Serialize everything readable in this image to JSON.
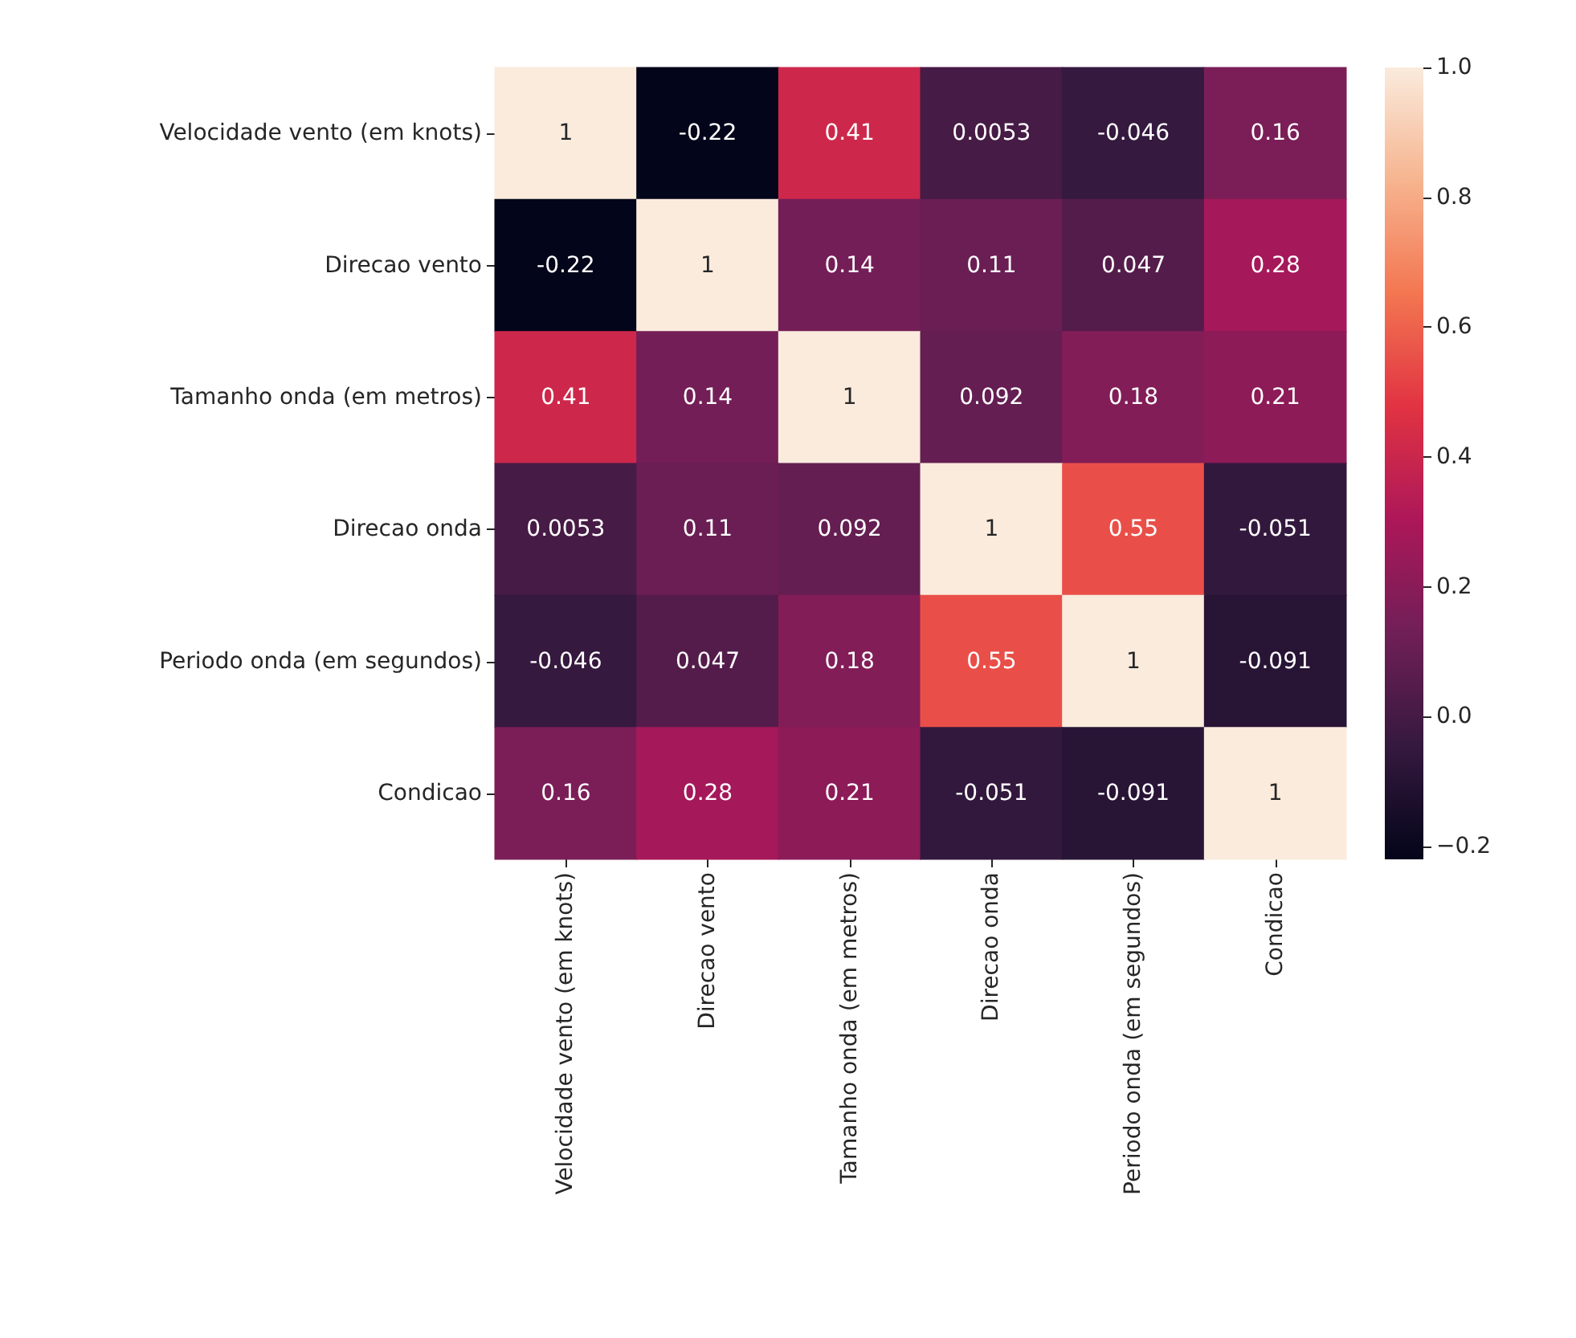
{
  "chart_data": {
    "type": "heatmap",
    "categories": [
      "Velocidade vento (em knots)",
      "Direcao vento",
      "Tamanho onda (em metros)",
      "Direcao onda",
      "Periodo onda (em segundos)",
      "Condicao"
    ],
    "y_categories": [
      "Velocidade vento (em knots)",
      "Direcao vento",
      "Tamanho onda (em metros)",
      "Direcao onda",
      "Periodo onda (em segundos)",
      "Condicao"
    ],
    "cells": [
      [
        1,
        -0.22,
        0.41,
        0.0053,
        -0.046,
        0.16
      ],
      [
        -0.22,
        1,
        0.14,
        0.11,
        0.047,
        0.28
      ],
      [
        0.41,
        0.14,
        1,
        0.092,
        0.18,
        0.21
      ],
      [
        0.0053,
        0.11,
        0.092,
        1,
        0.55,
        -0.051
      ],
      [
        -0.046,
        0.047,
        0.18,
        0.55,
        1,
        -0.091
      ],
      [
        0.16,
        0.28,
        0.21,
        -0.051,
        -0.091,
        1
      ]
    ],
    "clim": [
      -0.22,
      1
    ],
    "cticks": [
      {
        "value": -0.2,
        "label": "−0.2"
      },
      {
        "value": 0,
        "label": "0.0"
      },
      {
        "value": 0.2,
        "label": "0.2"
      },
      {
        "value": 0.4,
        "label": "0.4"
      },
      {
        "value": 0.6,
        "label": "0.6"
      },
      {
        "value": 0.8,
        "label": "0.8"
      },
      {
        "value": 1,
        "label": "1.0"
      }
    ],
    "data_labels": true
  }
}
